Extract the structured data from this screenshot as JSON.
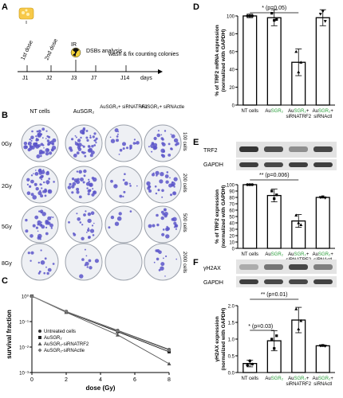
{
  "panels": {
    "A": {
      "letter": "A",
      "events": [
        "1st dose",
        "2nd dose",
        "IR",
        "DSBs analysis",
        "wash & fix counting colonies"
      ],
      "days": [
        "J1",
        "J2",
        "J3",
        "J7",
        "J14"
      ],
      "axis_unit": "days"
    },
    "B": {
      "letter": "B",
      "columns": [
        "NT cells",
        "AuSGR₂",
        "AuSGR₂+ siRNATRF2",
        "AuSGR₂+ siRNActle"
      ],
      "rows": [
        "0Gy",
        "2Gy",
        "5Gy",
        "8Gy"
      ],
      "cell_counts": [
        "100 cells",
        "200 cells",
        "500 cells",
        "2000 cells"
      ]
    },
    "C": {
      "letter": "C"
    },
    "D": {
      "letter": "D"
    },
    "E": {
      "letter": "E",
      "blot_labels": [
        "TRF2",
        "GAPDH"
      ]
    },
    "F": {
      "letter": "F",
      "blot_labels": [
        "γH2AX",
        "GAPDH"
      ]
    }
  },
  "colors": {
    "bar": "#ffffff",
    "accent": "#2a9d3a",
    "colony": "#5b55c9",
    "blot": "#2b2b2b"
  },
  "chart_data": [
    {
      "id": "C",
      "type": "line",
      "xlabel": "dose (Gy)",
      "ylabel": "survival fraction",
      "x_ticks": [
        "0",
        "2",
        "4",
        "6",
        "8"
      ],
      "y_ticks": [
        "10⁰",
        "10⁻¹",
        "10⁻²",
        "10⁻³"
      ],
      "xlim": [
        0,
        8
      ],
      "ylim": [
        0.001,
        1
      ],
      "yscale": "log",
      "legend_position": "bottom-left",
      "x": [
        0,
        2,
        5,
        8
      ],
      "series": [
        {
          "name": "Untreated cells",
          "values": [
            1,
            0.25,
            0.045,
            0.008
          ]
        },
        {
          "name": "AuSGR₂",
          "values": [
            1,
            0.24,
            0.04,
            0.0065
          ]
        },
        {
          "name": "AuSGR₂-siRNATRF2",
          "values": [
            1,
            0.23,
            0.03,
            0.0022
          ]
        },
        {
          "name": "AuSGR₂-siRNActle",
          "values": [
            1,
            0.25,
            0.043,
            0.0075
          ]
        }
      ]
    },
    {
      "id": "D",
      "type": "bar",
      "ylabel": "% of TRF2 mRNA expression (normalized with GAPDH)",
      "categories": [
        "NT cells",
        "AuSGR₂",
        "AuSGR₂+ siRNATRF2",
        "AuSGR₂+ siRNActl"
      ],
      "values": [
        100,
        98,
        48,
        98
      ],
      "errors": [
        2,
        9,
        15,
        9
      ],
      "points": [
        [
          100,
          100,
          100
        ],
        [
          103,
          95,
          96
        ],
        [
          60,
          37,
          48
        ],
        [
          102,
          105,
          94
        ]
      ],
      "ylim": [
        0,
        100
      ],
      "y_ticks": [
        "0",
        "20",
        "40",
        "60",
        "80",
        "100"
      ],
      "annotation": "* (p=0.05)"
    },
    {
      "id": "E",
      "type": "bar",
      "ylabel": "% of TRF2 expression (normalized with GAPDH)",
      "categories": [
        "NT cells",
        "AuSGR₂",
        "AuSGR₂+ siRNATRF2",
        "AuSGR₂+ siRNActl"
      ],
      "values": [
        100,
        83,
        43,
        80
      ],
      "errors": [
        1,
        10,
        10,
        1
      ],
      "points": [
        [
          100,
          100,
          100
        ],
        [
          90,
          78,
          84
        ],
        [
          52,
          40,
          37
        ],
        [
          80,
          81,
          79
        ]
      ],
      "ylim": [
        0,
        100
      ],
      "y_ticks": [
        "0",
        "10",
        "20",
        "30",
        "40",
        "50",
        "60",
        "70",
        "80",
        "90",
        "100"
      ],
      "annotation": "** (p=0.006)"
    },
    {
      "id": "F",
      "type": "bar",
      "ylabel": "γH2AX expression (normalized with GAPDH)",
      "categories": [
        "NT cells",
        "AuSGR₂",
        "AuSGR₂+ siRNATRF2",
        "AuSGR₂+ siRNActl"
      ],
      "values": [
        0.27,
        0.95,
        1.57,
        0.8
      ],
      "errors": [
        0.1,
        0.3,
        0.38,
        0.02
      ],
      "points": [
        [
          0.22,
          0.35,
          0.25
        ],
        [
          1.0,
          0.72,
          1.1
        ],
        [
          1.9,
          1.3,
          1.55
        ],
        [
          0.8,
          0.81,
          0.79
        ]
      ],
      "ylim": [
        0,
        2
      ],
      "y_ticks": [
        "0.0",
        "0.5",
        "1.0",
        "1.5",
        "2.0"
      ],
      "annotations": [
        "** (p=0.01)",
        "* (p=0.03)"
      ]
    }
  ]
}
